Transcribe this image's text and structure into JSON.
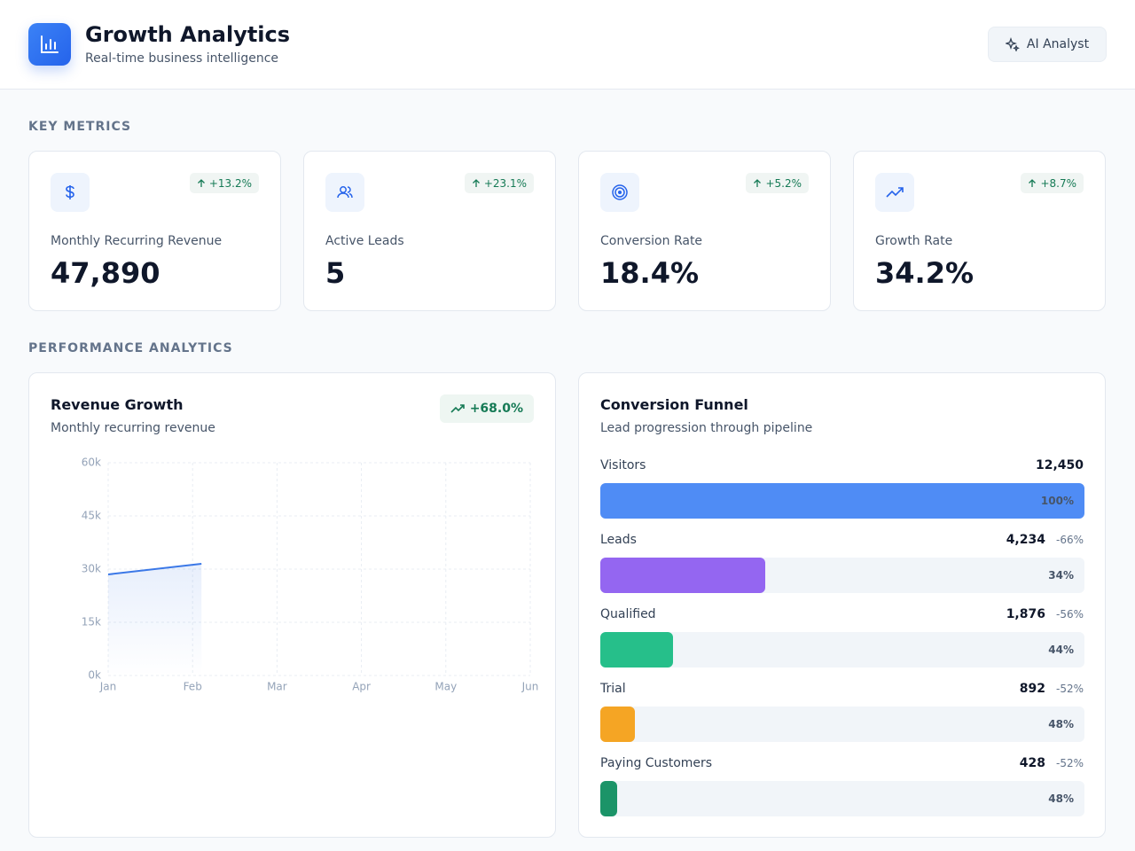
{
  "header": {
    "title": "Growth Analytics",
    "subtitle": "Real-time business intelligence",
    "button": "AI Analyst"
  },
  "metrics_section": {
    "title": "KEY METRICS",
    "cards": [
      {
        "label": "Monthly Recurring Revenue",
        "value": "47,890",
        "change": "+13.2%"
      },
      {
        "label": "Active Leads",
        "value": "5",
        "change": "+23.1%"
      },
      {
        "label": "Conversion Rate",
        "value": "18.4%",
        "change": "+5.2%"
      },
      {
        "label": "Growth Rate",
        "value": "34.2%",
        "change": "+8.7%"
      }
    ]
  },
  "analytics_section": {
    "title": "PERFORMANCE ANALYTICS"
  },
  "chart_data": {
    "type": "line",
    "title": "Revenue Growth",
    "subtitle": "Monthly recurring revenue",
    "badge": "+68.0%",
    "categories": [
      "Jan",
      "Feb",
      "Mar",
      "Apr",
      "May",
      "Jun"
    ],
    "series": [
      {
        "name": "Revenue",
        "color": "#3b78e7",
        "values": [
          28500,
          31500,
          null,
          null,
          null,
          null
        ]
      }
    ],
    "ylim": [
      0,
      60000
    ],
    "yticks": [
      {
        "value": 0,
        "label": "0k"
      },
      {
        "value": 15000,
        "label": "15k"
      },
      {
        "value": 30000,
        "label": "30k"
      },
      {
        "value": 45000,
        "label": "45k"
      },
      {
        "value": 60000,
        "label": "60k"
      }
    ],
    "grid": true
  },
  "funnel": {
    "title": "Conversion Funnel",
    "subtitle": "Lead progression through pipeline",
    "stages": [
      {
        "name": "Visitors",
        "count": 12450,
        "count_label": "12,450",
        "rate": 100,
        "rate_label": "100%",
        "change": null,
        "color": "#4f8cf5"
      },
      {
        "name": "Leads",
        "count": 4234,
        "count_label": "4,234",
        "rate": 34,
        "rate_label": "34%",
        "change": -66,
        "change_label": "-66%",
        "color": "#9466f1"
      },
      {
        "name": "Qualified",
        "count": 1876,
        "count_label": "1,876",
        "rate": 44,
        "rate_label": "44%",
        "change": -56,
        "change_label": "-56%",
        "color": "#26bf8a"
      },
      {
        "name": "Trial",
        "count": 892,
        "count_label": "892",
        "rate": 48,
        "rate_label": "48%",
        "change": -52,
        "change_label": "-52%",
        "color": "#f5a524"
      },
      {
        "name": "Paying Customers",
        "count": 428,
        "count_label": "428",
        "rate": 48,
        "rate_label": "48%",
        "change": -52,
        "change_label": "-52%",
        "color": "#1b9468"
      }
    ]
  }
}
